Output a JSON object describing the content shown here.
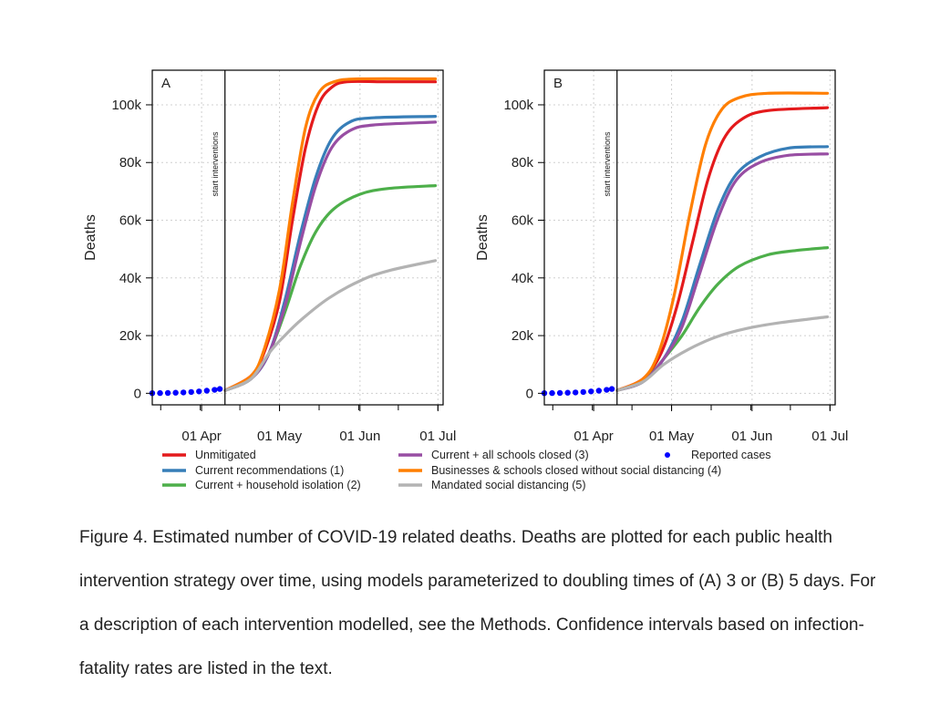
{
  "figure": {
    "caption": "Figure 4. Estimated number of COVID-19 related deaths. Deaths are plotted for each public health intervention strategy over time, using models parameterized to doubling times of (A) 3 or (B) 5 days. For a description of each intervention modelled, see the Methods. Confidence intervals based on infection-fatality rates are listed in the text.",
    "legend": [
      {
        "label": "Unmitigated",
        "color": "#e41a1c",
        "kind": "line"
      },
      {
        "label": "Current recommendations (1)",
        "color": "#377eb8",
        "kind": "line"
      },
      {
        "label": "Current + household isolation (2)",
        "color": "#4daf4a",
        "kind": "line"
      },
      {
        "label": "Current + all schools closed (3)",
        "color": "#984ea3",
        "kind": "line"
      },
      {
        "label": "Businesses & schools closed without social distancing (4)",
        "color": "#ff7f00",
        "kind": "line"
      },
      {
        "label": "Mandated social distancing (5)",
        "color": "#b3b3b3",
        "kind": "line"
      },
      {
        "label": "Reported cases",
        "color": "#0000ff",
        "kind": "point"
      }
    ]
  },
  "chart_data": [
    {
      "type": "line",
      "panel": "A",
      "title": "",
      "xlabel": "",
      "ylabel": "Deaths",
      "x_ticks": [
        "01 Apr",
        "01 May",
        "01 Jun",
        "01 Jul"
      ],
      "x_range": [
        "2020-03-13",
        "2020-07-03"
      ],
      "y_ticks": [
        "0",
        "20k",
        "40k",
        "60k",
        "80k",
        "100k"
      ],
      "ylim": [
        -4000,
        112000
      ],
      "grid": true,
      "annotation": {
        "text": "start interventions",
        "x": "2020-04-10"
      },
      "series": [
        {
          "name": "Unmitigated",
          "color": "#e41a1c",
          "points": [
            [
              "2020-04-10",
              1000
            ],
            [
              "2020-04-20",
              6000
            ],
            [
              "2020-04-25",
              14000
            ],
            [
              "2020-05-01",
              32000
            ],
            [
              "2020-05-06",
              60000
            ],
            [
              "2020-05-11",
              85000
            ],
            [
              "2020-05-16",
              100000
            ],
            [
              "2020-05-21",
              106000
            ],
            [
              "2020-05-27",
              108000
            ],
            [
              "2020-06-10",
              108000
            ],
            [
              "2020-06-30",
              108000
            ]
          ]
        },
        {
          "name": "Current recommendations (1)",
          "color": "#377eb8",
          "points": [
            [
              "2020-04-10",
              1000
            ],
            [
              "2020-04-20",
              5000
            ],
            [
              "2020-04-27",
              14000
            ],
            [
              "2020-05-03",
              32000
            ],
            [
              "2020-05-09",
              55000
            ],
            [
              "2020-05-15",
              75000
            ],
            [
              "2020-05-21",
              88000
            ],
            [
              "2020-05-28",
              94000
            ],
            [
              "2020-06-06",
              95500
            ],
            [
              "2020-06-30",
              96000
            ]
          ]
        },
        {
          "name": "Current + household isolation (2)",
          "color": "#4daf4a",
          "points": [
            [
              "2020-04-10",
              1000
            ],
            [
              "2020-04-20",
              5000
            ],
            [
              "2020-04-27",
              14000
            ],
            [
              "2020-05-03",
              28000
            ],
            [
              "2020-05-09",
              44000
            ],
            [
              "2020-05-15",
              56000
            ],
            [
              "2020-05-22",
              64000
            ],
            [
              "2020-06-01",
              69000
            ],
            [
              "2020-06-12",
              71000
            ],
            [
              "2020-06-30",
              72000
            ]
          ]
        },
        {
          "name": "Current + all schools closed (3)",
          "color": "#984ea3",
          "points": [
            [
              "2020-04-10",
              1000
            ],
            [
              "2020-04-20",
              5000
            ],
            [
              "2020-04-27",
              14000
            ],
            [
              "2020-05-03",
              30000
            ],
            [
              "2020-05-09",
              52000
            ],
            [
              "2020-05-15",
              72000
            ],
            [
              "2020-05-21",
              85000
            ],
            [
              "2020-05-28",
              91000
            ],
            [
              "2020-06-06",
              93000
            ],
            [
              "2020-06-30",
              94000
            ]
          ]
        },
        {
          "name": "Businesses & schools closed without social distancing (4)",
          "color": "#ff7f00",
          "points": [
            [
              "2020-04-10",
              1000
            ],
            [
              "2020-04-20",
              6000
            ],
            [
              "2020-04-25",
              15000
            ],
            [
              "2020-05-01",
              36000
            ],
            [
              "2020-05-06",
              66000
            ],
            [
              "2020-05-11",
              92000
            ],
            [
              "2020-05-16",
              104000
            ],
            [
              "2020-05-22",
              108000
            ],
            [
              "2020-06-01",
              109000
            ],
            [
              "2020-06-30",
              109000
            ]
          ]
        },
        {
          "name": "Mandated social distancing (5)",
          "color": "#b3b3b3",
          "points": [
            [
              "2020-04-10",
              1000
            ],
            [
              "2020-04-20",
              5000
            ],
            [
              "2020-04-27",
              14000
            ],
            [
              "2020-05-03",
              20000
            ],
            [
              "2020-05-10",
              26000
            ],
            [
              "2020-05-20",
              33000
            ],
            [
              "2020-06-01",
              39000
            ],
            [
              "2020-06-12",
              42500
            ],
            [
              "2020-06-30",
              46000
            ]
          ]
        },
        {
          "name": "Reported cases",
          "color": "#0000ff",
          "style": "points",
          "points": [
            [
              "2020-03-13",
              50
            ],
            [
              "2020-03-16",
              80
            ],
            [
              "2020-03-19",
              120
            ],
            [
              "2020-03-22",
              200
            ],
            [
              "2020-03-25",
              300
            ],
            [
              "2020-03-28",
              450
            ],
            [
              "2020-03-31",
              650
            ],
            [
              "2020-04-03",
              900
            ],
            [
              "2020-04-06",
              1200
            ],
            [
              "2020-04-08",
              1500
            ]
          ]
        }
      ]
    },
    {
      "type": "line",
      "panel": "B",
      "title": "",
      "xlabel": "",
      "ylabel": "Deaths",
      "x_ticks": [
        "01 Apr",
        "01 May",
        "01 Jun",
        "01 Jul"
      ],
      "x_range": [
        "2020-03-13",
        "2020-07-03"
      ],
      "y_ticks": [
        "0",
        "20k",
        "40k",
        "60k",
        "80k",
        "100k"
      ],
      "ylim": [
        -4000,
        112000
      ],
      "grid": true,
      "annotation": {
        "text": "start interventions",
        "x": "2020-04-10"
      },
      "series": [
        {
          "name": "Unmitigated",
          "color": "#e41a1c",
          "points": [
            [
              "2020-04-10",
              1000
            ],
            [
              "2020-04-20",
              5000
            ],
            [
              "2020-04-27",
              14000
            ],
            [
              "2020-05-03",
              30000
            ],
            [
              "2020-05-09",
              52000
            ],
            [
              "2020-05-15",
              74000
            ],
            [
              "2020-05-21",
              88000
            ],
            [
              "2020-05-28",
              95000
            ],
            [
              "2020-06-07",
              98000
            ],
            [
              "2020-06-30",
              99000
            ]
          ]
        },
        {
          "name": "Current recommendations (1)",
          "color": "#377eb8",
          "points": [
            [
              "2020-04-10",
              1000
            ],
            [
              "2020-04-20",
              4000
            ],
            [
              "2020-04-28",
              12000
            ],
            [
              "2020-05-05",
              25000
            ],
            [
              "2020-05-12",
              45000
            ],
            [
              "2020-05-19",
              64000
            ],
            [
              "2020-05-26",
              76000
            ],
            [
              "2020-06-04",
              82000
            ],
            [
              "2020-06-15",
              85000
            ],
            [
              "2020-06-30",
              85500
            ]
          ]
        },
        {
          "name": "Current + household isolation (2)",
          "color": "#4daf4a",
          "points": [
            [
              "2020-04-10",
              1000
            ],
            [
              "2020-04-20",
              4000
            ],
            [
              "2020-04-28",
              12000
            ],
            [
              "2020-05-05",
              20000
            ],
            [
              "2020-05-12",
              30000
            ],
            [
              "2020-05-19",
              38000
            ],
            [
              "2020-05-27",
              44000
            ],
            [
              "2020-06-07",
              48000
            ],
            [
              "2020-06-18",
              49500
            ],
            [
              "2020-06-30",
              50500
            ]
          ]
        },
        {
          "name": "Current + all schools closed (3)",
          "color": "#984ea3",
          "points": [
            [
              "2020-04-10",
              1000
            ],
            [
              "2020-04-20",
              4000
            ],
            [
              "2020-04-28",
              12000
            ],
            [
              "2020-05-05",
              23000
            ],
            [
              "2020-05-12",
              42000
            ],
            [
              "2020-05-19",
              61000
            ],
            [
              "2020-05-26",
              74000
            ],
            [
              "2020-06-04",
              80000
            ],
            [
              "2020-06-15",
              82500
            ],
            [
              "2020-06-30",
              83000
            ]
          ]
        },
        {
          "name": "Businesses & schools closed without social distancing (4)",
          "color": "#ff7f00",
          "points": [
            [
              "2020-04-10",
              1000
            ],
            [
              "2020-04-20",
              5000
            ],
            [
              "2020-04-26",
              14000
            ],
            [
              "2020-05-02",
              34000
            ],
            [
              "2020-05-08",
              62000
            ],
            [
              "2020-05-14",
              86000
            ],
            [
              "2020-05-20",
              98000
            ],
            [
              "2020-05-27",
              102500
            ],
            [
              "2020-06-07",
              104000
            ],
            [
              "2020-06-30",
              104000
            ]
          ]
        },
        {
          "name": "Mandated social distancing (5)",
          "color": "#b3b3b3",
          "points": [
            [
              "2020-04-10",
              1000
            ],
            [
              "2020-04-20",
              4000
            ],
            [
              "2020-04-28",
              10000
            ],
            [
              "2020-05-07",
              15000
            ],
            [
              "2020-05-18",
              19500
            ],
            [
              "2020-05-30",
              22500
            ],
            [
              "2020-06-12",
              24500
            ],
            [
              "2020-06-30",
              26500
            ]
          ]
        },
        {
          "name": "Reported cases",
          "color": "#0000ff",
          "style": "points",
          "points": [
            [
              "2020-03-13",
              50
            ],
            [
              "2020-03-16",
              80
            ],
            [
              "2020-03-19",
              120
            ],
            [
              "2020-03-22",
              200
            ],
            [
              "2020-03-25",
              300
            ],
            [
              "2020-03-28",
              450
            ],
            [
              "2020-03-31",
              650
            ],
            [
              "2020-04-03",
              900
            ],
            [
              "2020-04-06",
              1200
            ],
            [
              "2020-04-08",
              1500
            ]
          ]
        }
      ]
    }
  ]
}
